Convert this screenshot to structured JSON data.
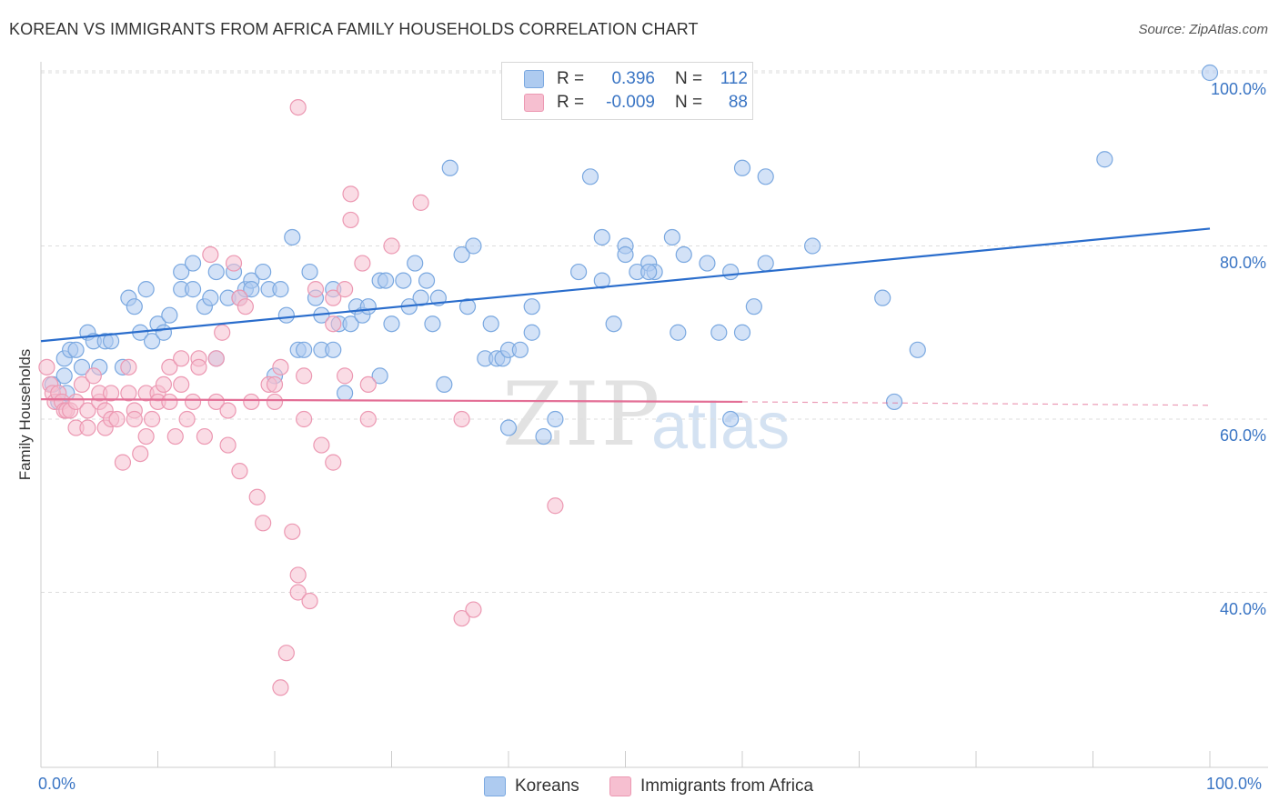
{
  "title": "KOREAN VS IMMIGRANTS FROM AFRICA FAMILY HOUSEHOLDS CORRELATION CHART",
  "source": "Source: ZipAtlas.com",
  "watermark": {
    "zip": "ZIP",
    "atlas": "atlas"
  },
  "legend": {
    "korean": {
      "r_label": "R =",
      "r_value": "0.396",
      "n_label": "N =",
      "n_value": "112"
    },
    "africa": {
      "r_label": "R =",
      "r_value": "-0.009",
      "n_label": "N =",
      "n_value": "88"
    }
  },
  "bottom_legend": {
    "korean": "Koreans",
    "africa": "Immigrants from Africa"
  },
  "colors": {
    "korean_fill": "#aecbf0",
    "korean_stroke": "#7aa8e0",
    "korean_line": "#2a6dcc",
    "africa_fill": "#f6bfd0",
    "africa_stroke": "#ec98b2",
    "africa_line": "#e36f96",
    "axis_label": "#3a75c4",
    "grid": "#dddddd"
  },
  "chart_data": {
    "type": "scatter",
    "title": "KOREAN VS IMMIGRANTS FROM AFRICA FAMILY HOUSEHOLDS CORRELATION CHART",
    "xlabel": "",
    "ylabel": "Family Households",
    "xlim": [
      0,
      100
    ],
    "ylim": [
      20,
      100
    ],
    "x_tick_labels": [
      "0.0%",
      "100.0%"
    ],
    "y_ticks": [
      40,
      60,
      80,
      100
    ],
    "y_tick_labels": [
      "40.0%",
      "60.0%",
      "80.0%",
      "100.0%"
    ],
    "grid": true,
    "series": [
      {
        "name": "Koreans",
        "trend": {
          "x0": 0,
          "y0": 69.0,
          "x1": 100,
          "y1": 82.0
        },
        "points": [
          [
            1,
            64
          ],
          [
            1.5,
            62
          ],
          [
            2,
            67
          ],
          [
            2,
            65
          ],
          [
            2.2,
            63
          ],
          [
            2.5,
            68
          ],
          [
            3,
            68
          ],
          [
            3.5,
            66
          ],
          [
            4,
            70
          ],
          [
            4.5,
            69
          ],
          [
            5,
            66
          ],
          [
            5.5,
            69
          ],
          [
            6,
            69
          ],
          [
            7,
            66
          ],
          [
            7.5,
            74
          ],
          [
            8,
            73
          ],
          [
            8.5,
            70
          ],
          [
            9,
            75
          ],
          [
            9.5,
            69
          ],
          [
            10,
            71
          ],
          [
            10.5,
            70
          ],
          [
            11,
            72
          ],
          [
            12,
            75
          ],
          [
            12,
            77
          ],
          [
            13,
            78
          ],
          [
            13,
            75
          ],
          [
            14,
            73
          ],
          [
            14.5,
            74
          ],
          [
            15,
            77
          ],
          [
            15,
            67
          ],
          [
            16,
            74
          ],
          [
            16.5,
            77
          ],
          [
            17,
            74
          ],
          [
            17.5,
            75
          ],
          [
            18,
            76
          ],
          [
            18,
            75
          ],
          [
            19,
            77
          ],
          [
            19.5,
            75
          ],
          [
            20,
            65
          ],
          [
            20.5,
            75
          ],
          [
            21,
            72
          ],
          [
            21.5,
            81
          ],
          [
            22,
            68
          ],
          [
            22.5,
            68
          ],
          [
            23,
            77
          ],
          [
            23.5,
            74
          ],
          [
            24,
            72
          ],
          [
            24,
            68
          ],
          [
            25,
            68
          ],
          [
            25,
            75
          ],
          [
            25.5,
            71
          ],
          [
            26,
            63
          ],
          [
            26.5,
            71
          ],
          [
            27,
            73
          ],
          [
            27.5,
            72
          ],
          [
            28,
            73
          ],
          [
            29,
            76
          ],
          [
            29,
            65
          ],
          [
            29.5,
            76
          ],
          [
            30,
            71
          ],
          [
            31,
            76
          ],
          [
            31.5,
            73
          ],
          [
            32,
            78
          ],
          [
            32.5,
            74
          ],
          [
            33,
            76
          ],
          [
            33.5,
            71
          ],
          [
            34,
            74
          ],
          [
            34.5,
            64
          ],
          [
            35,
            89
          ],
          [
            36,
            79
          ],
          [
            36.5,
            73
          ],
          [
            37,
            80
          ],
          [
            38,
            67
          ],
          [
            38.5,
            71
          ],
          [
            39,
            67
          ],
          [
            39.5,
            67
          ],
          [
            40,
            68
          ],
          [
            40,
            59
          ],
          [
            41,
            68
          ],
          [
            42,
            70
          ],
          [
            42,
            73
          ],
          [
            43,
            58
          ],
          [
            44,
            60
          ],
          [
            46,
            77
          ],
          [
            47,
            88
          ],
          [
            48,
            81
          ],
          [
            48,
            76
          ],
          [
            49,
            71
          ],
          [
            50,
            80
          ],
          [
            50,
            79
          ],
          [
            51,
            77
          ],
          [
            52,
            78
          ],
          [
            52.5,
            77
          ],
          [
            54,
            81
          ],
          [
            54.5,
            70
          ],
          [
            55,
            79
          ],
          [
            57,
            78
          ],
          [
            58,
            70
          ],
          [
            59,
            77
          ],
          [
            59,
            60
          ],
          [
            60,
            89
          ],
          [
            60,
            70
          ],
          [
            61,
            73
          ],
          [
            62,
            88
          ],
          [
            62,
            78
          ],
          [
            66,
            80
          ],
          [
            72,
            74
          ],
          [
            73,
            62
          ],
          [
            75,
            68
          ],
          [
            91,
            90
          ],
          [
            100,
            100
          ],
          [
            52,
            77
          ]
        ]
      },
      {
        "name": "Immigrants from Africa",
        "trend": {
          "x0": 0,
          "y0": 62.3,
          "x1": 60,
          "y1": 62.0,
          "dash_x1": 100,
          "dash_y1": 61.6
        },
        "points": [
          [
            0.5,
            66
          ],
          [
            0.8,
            64
          ],
          [
            1,
            63
          ],
          [
            1.2,
            62
          ],
          [
            1.5,
            63
          ],
          [
            1.8,
            62
          ],
          [
            2,
            61
          ],
          [
            2.2,
            61
          ],
          [
            2.5,
            61
          ],
          [
            3,
            62
          ],
          [
            3,
            59
          ],
          [
            3.5,
            64
          ],
          [
            4,
            59
          ],
          [
            4,
            61
          ],
          [
            4.5,
            65
          ],
          [
            5,
            62
          ],
          [
            5,
            63
          ],
          [
            5.5,
            61
          ],
          [
            5.5,
            59
          ],
          [
            6,
            63
          ],
          [
            6,
            60
          ],
          [
            6.5,
            60
          ],
          [
            7,
            55
          ],
          [
            7.5,
            66
          ],
          [
            7.5,
            63
          ],
          [
            8,
            61
          ],
          [
            8,
            60
          ],
          [
            8.5,
            56
          ],
          [
            9,
            63
          ],
          [
            9,
            58
          ],
          [
            9.5,
            60
          ],
          [
            10,
            63
          ],
          [
            10,
            62
          ],
          [
            10.5,
            64
          ],
          [
            11,
            66
          ],
          [
            11,
            62
          ],
          [
            11.5,
            58
          ],
          [
            12,
            67
          ],
          [
            12,
            64
          ],
          [
            12.5,
            60
          ],
          [
            13,
            62
          ],
          [
            13.5,
            67
          ],
          [
            13.5,
            66
          ],
          [
            14,
            58
          ],
          [
            14.5,
            79
          ],
          [
            15,
            67
          ],
          [
            15,
            62
          ],
          [
            15.5,
            70
          ],
          [
            16,
            61
          ],
          [
            16,
            57
          ],
          [
            16.5,
            78
          ],
          [
            17,
            54
          ],
          [
            17,
            74
          ],
          [
            17.5,
            73
          ],
          [
            18,
            62
          ],
          [
            18.5,
            51
          ],
          [
            19,
            48
          ],
          [
            19.5,
            64
          ],
          [
            20,
            62
          ],
          [
            20.5,
            66
          ],
          [
            20.5,
            29
          ],
          [
            21,
            33
          ],
          [
            21.5,
            47
          ],
          [
            22,
            42
          ],
          [
            22,
            40
          ],
          [
            22.5,
            65
          ],
          [
            22.5,
            60
          ],
          [
            23,
            39
          ],
          [
            23.5,
            75
          ],
          [
            24,
            57
          ],
          [
            25,
            55
          ],
          [
            25,
            74
          ],
          [
            26,
            75
          ],
          [
            26,
            65
          ],
          [
            26.5,
            83
          ],
          [
            26.5,
            86
          ],
          [
            27.5,
            78
          ],
          [
            28,
            64
          ],
          [
            28,
            60
          ],
          [
            30,
            80
          ],
          [
            32.5,
            85
          ],
          [
            36,
            37
          ],
          [
            36,
            60
          ],
          [
            37,
            38
          ],
          [
            44,
            50
          ],
          [
            22,
            96
          ],
          [
            20,
            64
          ],
          [
            25,
            71
          ]
        ]
      }
    ]
  }
}
